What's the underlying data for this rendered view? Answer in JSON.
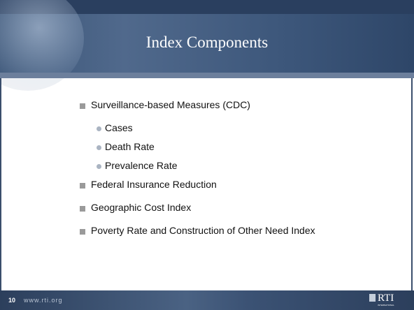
{
  "header": {
    "title": "Index Components"
  },
  "body": {
    "bullets": [
      {
        "text": "Surveillance-based Measures (CDC)",
        "children": [
          "Cases",
          "Death Rate",
          "Prevalence Rate"
        ]
      },
      {
        "text": "Federal Insurance Reduction"
      },
      {
        "text": "Geographic Cost Index"
      },
      {
        "text": "Poverty Rate and Construction of Other Need Index"
      }
    ]
  },
  "footer": {
    "page_number": "10",
    "url": "www.rti.org",
    "logo": "RTI",
    "logo_sub": "INTERNATIONAL"
  }
}
